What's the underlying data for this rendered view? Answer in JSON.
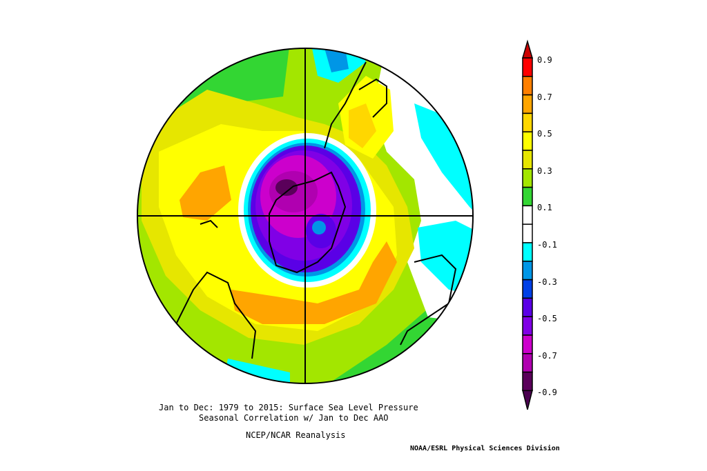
{
  "title": {
    "line1": "Jan to Dec: 1979 to 2015: Surface Sea Level Pressure",
    "line2": "Seasonal Correlation w/ Jan to Dec AAO",
    "dataset": "NCEP/NCAR Reanalysis",
    "credit": "NOAA/ESRL Physical Sciences Division"
  },
  "colorbar": {
    "labels": [
      "0.9",
      "0.7",
      "0.5",
      "0.3",
      "0.1",
      "-0.1",
      "-0.3",
      "-0.5",
      "-0.7",
      "-0.9"
    ],
    "colors": [
      "#ff0000",
      "#ff7f00",
      "#ffa500",
      "#ffd700",
      "#ffff00",
      "#e6e600",
      "#a3e600",
      "#33d633",
      "#ffffff",
      "#ffffff",
      "#00ffff",
      "#0096e6",
      "#0040e6",
      "#5a00e6",
      "#8000e6",
      "#cc00cc",
      "#b000b0",
      "#5a005a"
    ],
    "top_arrow_color": "#cc0000",
    "bottom_arrow_color": "#4a0050"
  },
  "chart_data": {
    "type": "heatmap",
    "projection": "south-polar stereographic",
    "variable": "Surface Sea Level Pressure correlation with AAO",
    "range": [
      -0.9,
      0.9
    ],
    "contour_interval": 0.1
  }
}
